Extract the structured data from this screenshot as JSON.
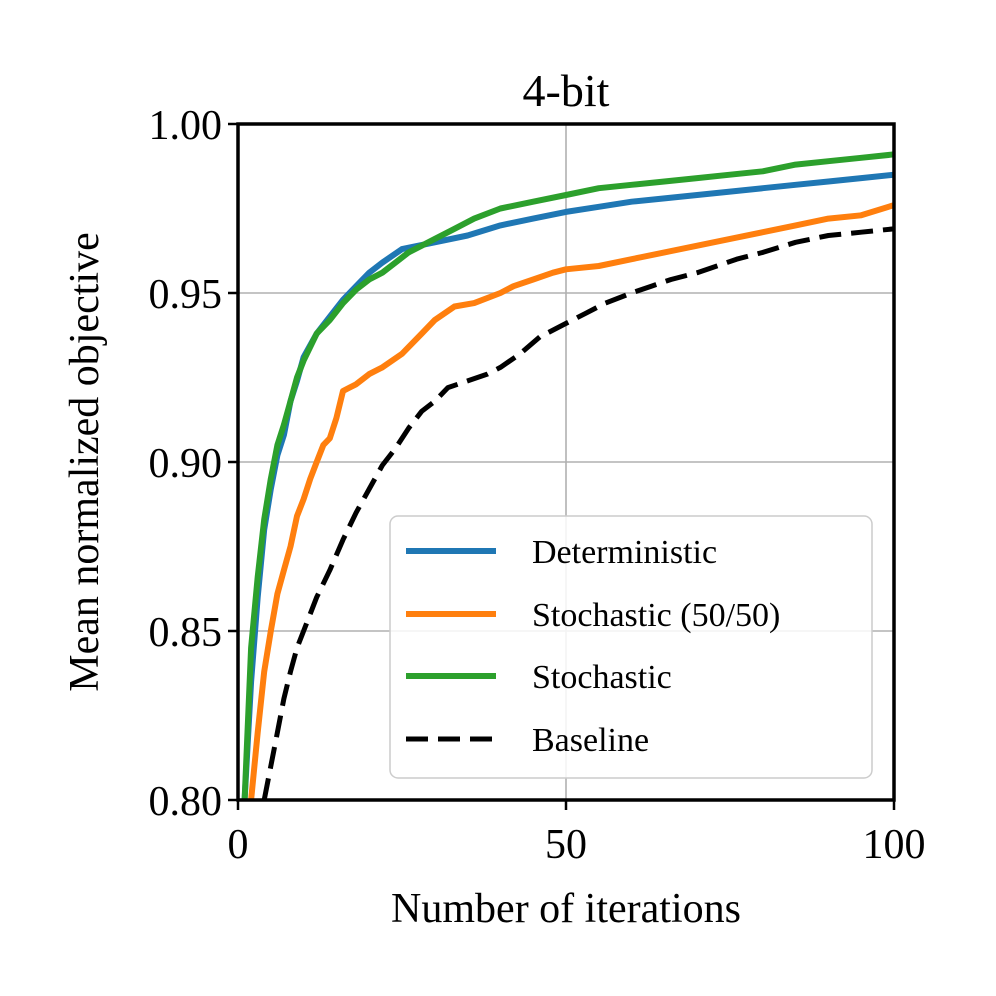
{
  "chart_data": {
    "type": "line",
    "title": "4-bit",
    "xlabel": "Number of iterations",
    "ylabel": "Mean normalized objective",
    "xlim": [
      0,
      100
    ],
    "ylim": [
      0.8,
      1.0
    ],
    "xticks": [
      0,
      50,
      100
    ],
    "xtick_labels": [
      "0",
      "50",
      "100"
    ],
    "yticks": [
      0.8,
      0.85,
      0.9,
      0.95,
      1.0
    ],
    "ytick_labels": [
      "0.80",
      "0.85",
      "0.90",
      "0.95",
      "1.00"
    ],
    "grid": true,
    "legend_position": "lower-right",
    "series": [
      {
        "name": "Deterministic",
        "color": "#1f77b4",
        "style": "solid",
        "x": [
          1,
          2,
          3,
          4,
          5,
          6,
          7,
          8,
          9,
          10,
          12,
          14,
          16,
          18,
          20,
          22,
          25,
          30,
          35,
          40,
          45,
          50,
          55,
          60,
          65,
          70,
          75,
          80,
          85,
          90,
          95,
          100
        ],
        "values": [
          0.8,
          0.835,
          0.86,
          0.88,
          0.892,
          0.902,
          0.908,
          0.918,
          0.924,
          0.931,
          0.938,
          0.943,
          0.948,
          0.952,
          0.956,
          0.959,
          0.963,
          0.965,
          0.967,
          0.97,
          0.972,
          0.974,
          0.9755,
          0.977,
          0.978,
          0.979,
          0.98,
          0.981,
          0.982,
          0.983,
          0.984,
          0.985
        ]
      },
      {
        "name": "Stochastic (50/50)",
        "color": "#ff7f0e",
        "style": "solid",
        "x": [
          2,
          3,
          4,
          5,
          6,
          7,
          8,
          9,
          10,
          11,
          12,
          13,
          14,
          15,
          16,
          17,
          18,
          20,
          22,
          25,
          28,
          30,
          33,
          36,
          40,
          42,
          45,
          48,
          50,
          55,
          60,
          65,
          70,
          75,
          80,
          85,
          90,
          95,
          100
        ],
        "values": [
          0.8,
          0.82,
          0.838,
          0.85,
          0.861,
          0.868,
          0.875,
          0.884,
          0.889,
          0.895,
          0.9,
          0.905,
          0.907,
          0.913,
          0.921,
          0.922,
          0.923,
          0.926,
          0.928,
          0.932,
          0.938,
          0.942,
          0.946,
          0.947,
          0.95,
          0.952,
          0.954,
          0.956,
          0.957,
          0.958,
          0.96,
          0.962,
          0.964,
          0.966,
          0.968,
          0.97,
          0.972,
          0.973,
          0.976
        ]
      },
      {
        "name": "Stochastic",
        "color": "#2ca02c",
        "style": "solid",
        "x": [
          1,
          2,
          3,
          4,
          5,
          6,
          7,
          8,
          9,
          10,
          12,
          14,
          16,
          18,
          20,
          22,
          24,
          26,
          28,
          30,
          33,
          36,
          40,
          45,
          50,
          55,
          60,
          65,
          70,
          75,
          80,
          85,
          90,
          95,
          100
        ],
        "values": [
          0.8,
          0.845,
          0.866,
          0.883,
          0.895,
          0.905,
          0.911,
          0.918,
          0.925,
          0.93,
          0.938,
          0.942,
          0.947,
          0.951,
          0.954,
          0.956,
          0.959,
          0.962,
          0.964,
          0.966,
          0.969,
          0.972,
          0.975,
          0.977,
          0.979,
          0.981,
          0.982,
          0.983,
          0.984,
          0.985,
          0.986,
          0.988,
          0.989,
          0.99,
          0.991
        ]
      },
      {
        "name": "Baseline",
        "color": "#000000",
        "style": "dashed",
        "x": [
          4,
          5,
          6,
          7,
          8,
          9,
          10,
          12,
          14,
          16,
          18,
          20,
          22,
          24,
          26,
          28,
          30,
          32,
          35,
          38,
          40,
          43,
          46,
          50,
          53,
          56,
          60,
          63,
          66,
          70,
          73,
          76,
          80,
          85,
          90,
          95,
          100
        ],
        "values": [
          0.8,
          0.81,
          0.82,
          0.83,
          0.838,
          0.845,
          0.85,
          0.86,
          0.868,
          0.877,
          0.885,
          0.892,
          0.899,
          0.904,
          0.91,
          0.915,
          0.918,
          0.922,
          0.924,
          0.926,
          0.928,
          0.932,
          0.937,
          0.941,
          0.944,
          0.947,
          0.95,
          0.952,
          0.954,
          0.956,
          0.958,
          0.96,
          0.962,
          0.965,
          0.967,
          0.968,
          0.969
        ]
      }
    ]
  }
}
